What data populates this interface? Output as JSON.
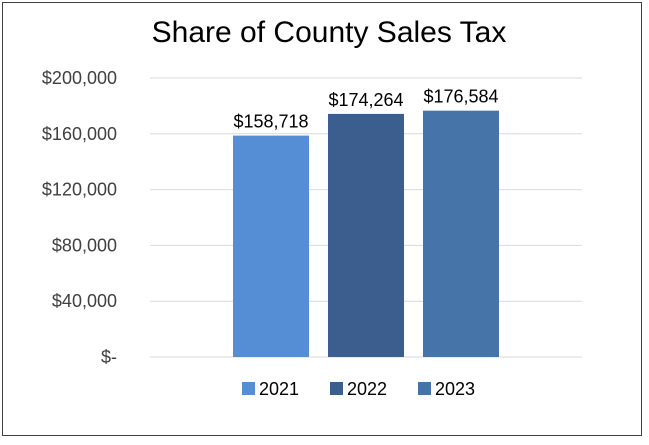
{
  "chart_data": {
    "type": "bar",
    "title": "Share of County Sales Tax",
    "xlabel": "",
    "ylabel": "",
    "categories": [
      ""
    ],
    "series": [
      {
        "name": "2021",
        "values": [
          158718
        ],
        "color": "#558ED5",
        "label": "$158,718"
      },
      {
        "name": "2022",
        "values": [
          174264
        ],
        "color": "#3B5E8E",
        "label": "$174,264"
      },
      {
        "name": "2023",
        "values": [
          176584
        ],
        "color": "#4673A8",
        "label": "$176,584"
      }
    ],
    "ylim": [
      0,
      200000
    ],
    "yticks": [
      {
        "value": 0,
        "label": "$-"
      },
      {
        "value": 40000,
        "label": "$40,000"
      },
      {
        "value": 80000,
        "label": "$80,000"
      },
      {
        "value": 120000,
        "label": "$120,000"
      },
      {
        "value": 160000,
        "label": "$160,000"
      },
      {
        "value": 200000,
        "label": "$200,000"
      }
    ],
    "grid": true,
    "legend": "bottom",
    "gridline_color": "#d9d9d9"
  }
}
